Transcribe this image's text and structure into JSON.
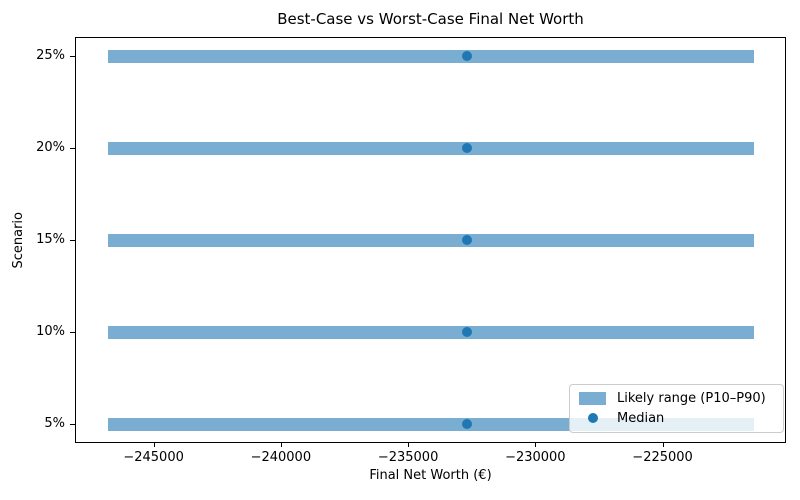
{
  "chart_data": {
    "type": "bar",
    "orientation": "horizontal",
    "title": "Best-Case vs Worst-Case Final Net Worth",
    "xlabel": "Final Net Worth (€)",
    "ylabel": "Scenario",
    "categories_top_to_bottom": [
      "25%",
      "20%",
      "15%",
      "10%",
      "5%"
    ],
    "series": [
      {
        "name": "Likely range (P10–P90)",
        "type": "range_bar",
        "p10": [
          -246800,
          -246800,
          -246800,
          -246800,
          -246800
        ],
        "p90": [
          -221400,
          -221400,
          -221400,
          -221400,
          -221400
        ]
      },
      {
        "name": "Median",
        "type": "scatter",
        "values": [
          -232700,
          -232700,
          -232700,
          -232700,
          -232700
        ]
      }
    ],
    "xlim": [
      -248050,
      -220150
    ],
    "xticks": [
      -245000,
      -240000,
      -235000,
      -230000,
      -225000
    ],
    "xtick_labels": [
      "−245000",
      "−240000",
      "−235000",
      "−230000",
      "−225000"
    ],
    "grid": false,
    "legend": {
      "position": "lower right",
      "entries": [
        "Likely range (P10–P90)",
        "Median"
      ]
    },
    "colors": {
      "range_bar": "#79add2",
      "median": "#1f77b4",
      "text": "#000000",
      "legend_border": "#cccccc",
      "background": "#ffffff"
    }
  }
}
